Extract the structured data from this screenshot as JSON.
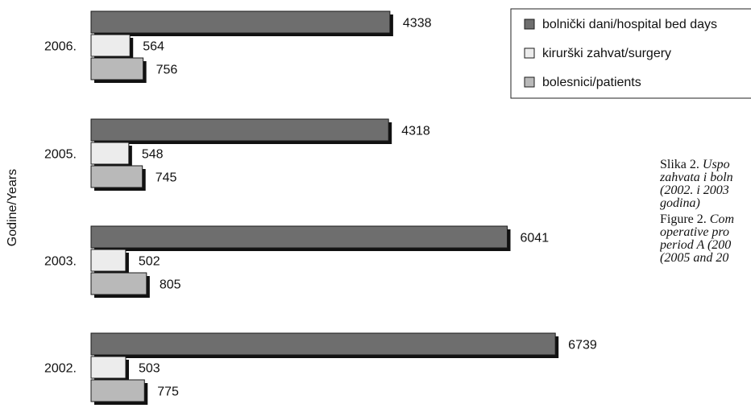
{
  "chart_data": {
    "type": "bar",
    "orientation": "horizontal",
    "ylabel": "Godine/Years",
    "categories": [
      "2006.",
      "2005.",
      "2003.",
      "2002."
    ],
    "series": [
      {
        "name": "bolnički dani/hospital bed days",
        "values": [
          4338,
          4318,
          6041,
          6739
        ],
        "color": "#6e6e6e"
      },
      {
        "name": "kirurški zahvat/surgery",
        "values": [
          564,
          548,
          502,
          503
        ],
        "color": "#ececec"
      },
      {
        "name": "bolesnici/patients",
        "values": [
          756,
          745,
          805,
          775
        ],
        "color": "#b9b9b9"
      }
    ],
    "legend_position": "top-right",
    "grid": false,
    "shadow_color": "#111111"
  },
  "caption": {
    "sr_prefix": "Slika 2. ",
    "sr_lines": [
      "Uspo",
      "zahvata i boln",
      "(2002. i 2003",
      "godina)"
    ],
    "en_prefix": "Figure 2. ",
    "en_lines": [
      "Com",
      "operative pro",
      "period A (200",
      "(2005 and 20"
    ]
  }
}
